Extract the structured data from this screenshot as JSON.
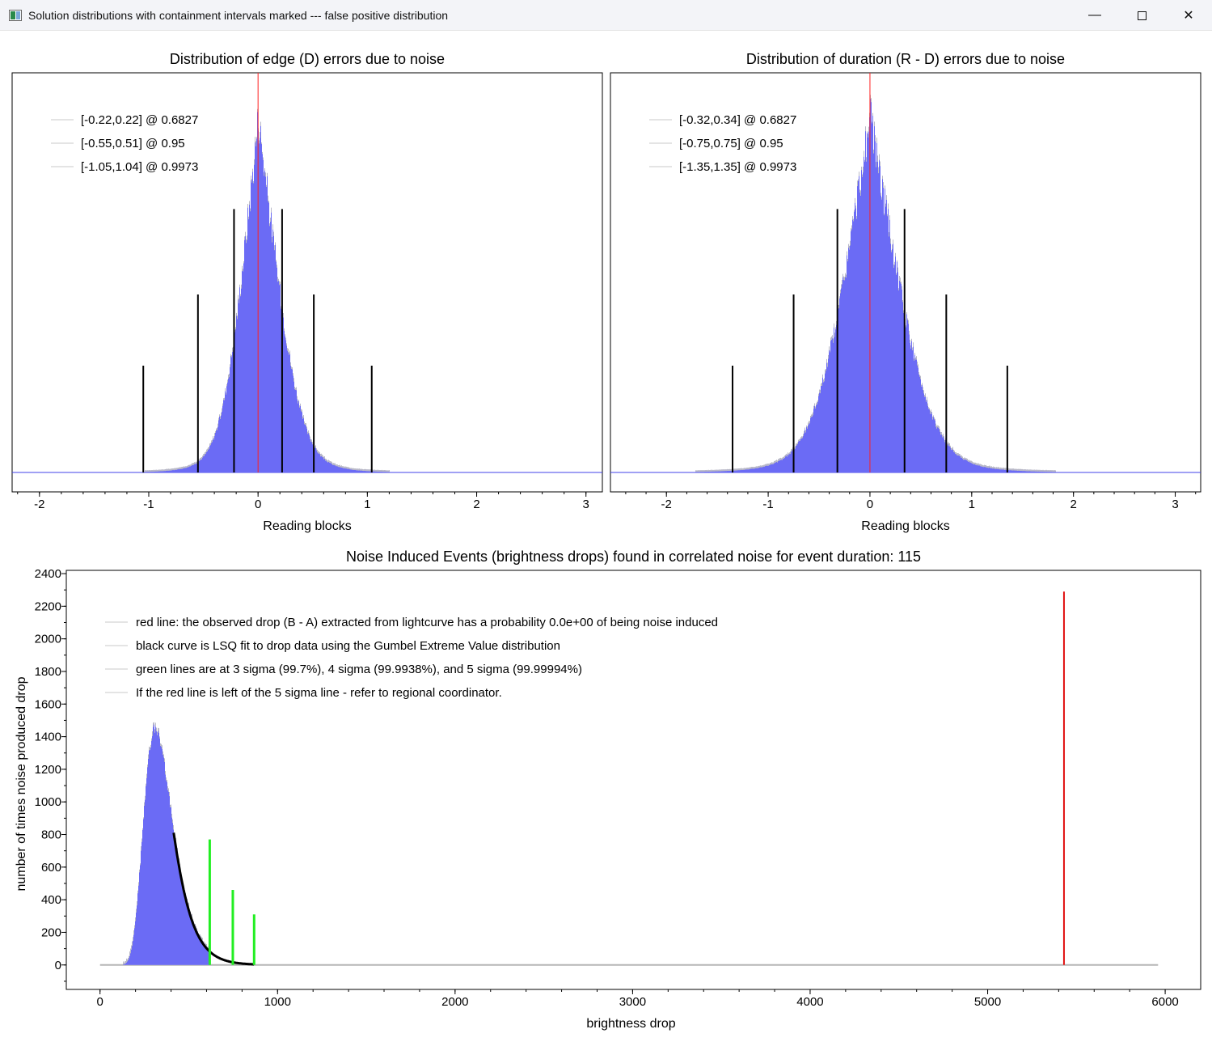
{
  "window": {
    "title": "Solution distributions with containment intervals marked --- false positive distribution",
    "minimize_icon": "minimize-icon",
    "maximize_icon": "maximize-icon",
    "close_icon": "close-icon",
    "minimize_glyph": "—",
    "close_glyph": "✕"
  },
  "chart_data": [
    {
      "type": "bar",
      "title": "Distribution of edge (D) errors due to noise",
      "xlabel": "Reading blocks",
      "ylabel": "",
      "xlim": [
        -2.25,
        3.15
      ],
      "xticks": [
        -2,
        -1,
        0,
        1,
        2,
        3
      ],
      "distribution": {
        "center": 0.0,
        "scale_left": 0.2,
        "scale_right": 0.23
      },
      "center_line": 0,
      "interval_markers": [
        {
          "x": -1.05,
          "height": 0.3
        },
        {
          "x": -0.55,
          "height": 0.5
        },
        {
          "x": -0.22,
          "height": 0.74
        },
        {
          "x": 0.22,
          "height": 0.74
        },
        {
          "x": 0.51,
          "height": 0.5
        },
        {
          "x": 1.04,
          "height": 0.3
        }
      ],
      "legend": [
        "[-0.22,0.22] @ 0.6827",
        "[-0.55,0.51] @ 0.95",
        "[-1.05,1.04] @ 0.9973"
      ],
      "legend_position": "top-left",
      "colors": {
        "bars": "#6b6bf5",
        "outline": "#b9b9c8",
        "center": "#ff2020",
        "markers": "#000000"
      }
    },
    {
      "type": "bar",
      "title": "Distribution of duration (R - D) errors due to noise",
      "xlabel": "Reading blocks",
      "ylabel": "",
      "xlim": [
        -2.55,
        3.25
      ],
      "xticks": [
        -2,
        -1,
        0,
        1,
        2,
        3
      ],
      "distribution": {
        "center": 0.0,
        "scale_left": 0.33,
        "scale_right": 0.35
      },
      "center_line": 0,
      "interval_markers": [
        {
          "x": -1.35,
          "height": 0.3
        },
        {
          "x": -0.75,
          "height": 0.5
        },
        {
          "x": -0.32,
          "height": 0.74
        },
        {
          "x": 0.34,
          "height": 0.74
        },
        {
          "x": 0.75,
          "height": 0.5
        },
        {
          "x": 1.35,
          "height": 0.3
        }
      ],
      "legend": [
        "[-0.32,0.34] @ 0.6827",
        "[-0.75,0.75] @ 0.95",
        "[-1.35,1.35] @ 0.9973"
      ],
      "legend_position": "top-left",
      "colors": {
        "bars": "#6b6bf5",
        "outline": "#b9b9c8",
        "center": "#ff2020",
        "markers": "#000000"
      }
    },
    {
      "type": "bar",
      "title": "Noise Induced Events (brightness drops) found in correlated noise for event duration: 115",
      "xlabel": "brightness drop",
      "ylabel": "number of times noise produced drop",
      "xlim": [
        -190,
        6200
      ],
      "ylim": [
        -150,
        2420
      ],
      "xticks": [
        0,
        1000,
        2000,
        3000,
        4000,
        5000,
        6000
      ],
      "yticks": [
        0,
        200,
        400,
        600,
        800,
        1000,
        1200,
        1400,
        1600,
        1800,
        2000,
        2200,
        2400
      ],
      "histogram": {
        "peak_x": 310,
        "peak_count": 1450,
        "x_start": 130,
        "x_end": 620
      },
      "gumbel_fit": {
        "x_start": 415,
        "x_end": 870
      },
      "baseline": {
        "x_start": 0,
        "x_end": 5960
      },
      "sigma_lines": [
        {
          "label": "3 sigma",
          "x": 618,
          "height": 770
        },
        {
          "label": "4 sigma",
          "x": 748,
          "height": 460
        },
        {
          "label": "5 sigma",
          "x": 868,
          "height": 310
        }
      ],
      "observed_drop": {
        "x": 5430,
        "height": 2290
      },
      "legend": [
        "red line: the observed drop (B - A) extracted from lightcurve has a probability 0.0e+00 of being noise induced",
        "black curve is LSQ fit to drop data using the Gumbel Extreme Value distribution",
        "green lines are at 3 sigma (99.7%), 4 sigma (99.9938%), and 5 sigma (99.99994%)",
        "If the red line is left of the 5 sigma line - refer to regional coordinator."
      ],
      "legend_position": "top-left",
      "colors": {
        "bars": "#6b6bf5",
        "outline": "#b9b9c8",
        "fit": "#000000",
        "sigma": "#22ee22",
        "observed": "#e01010",
        "baseline": "#b5b5b5"
      }
    }
  ]
}
